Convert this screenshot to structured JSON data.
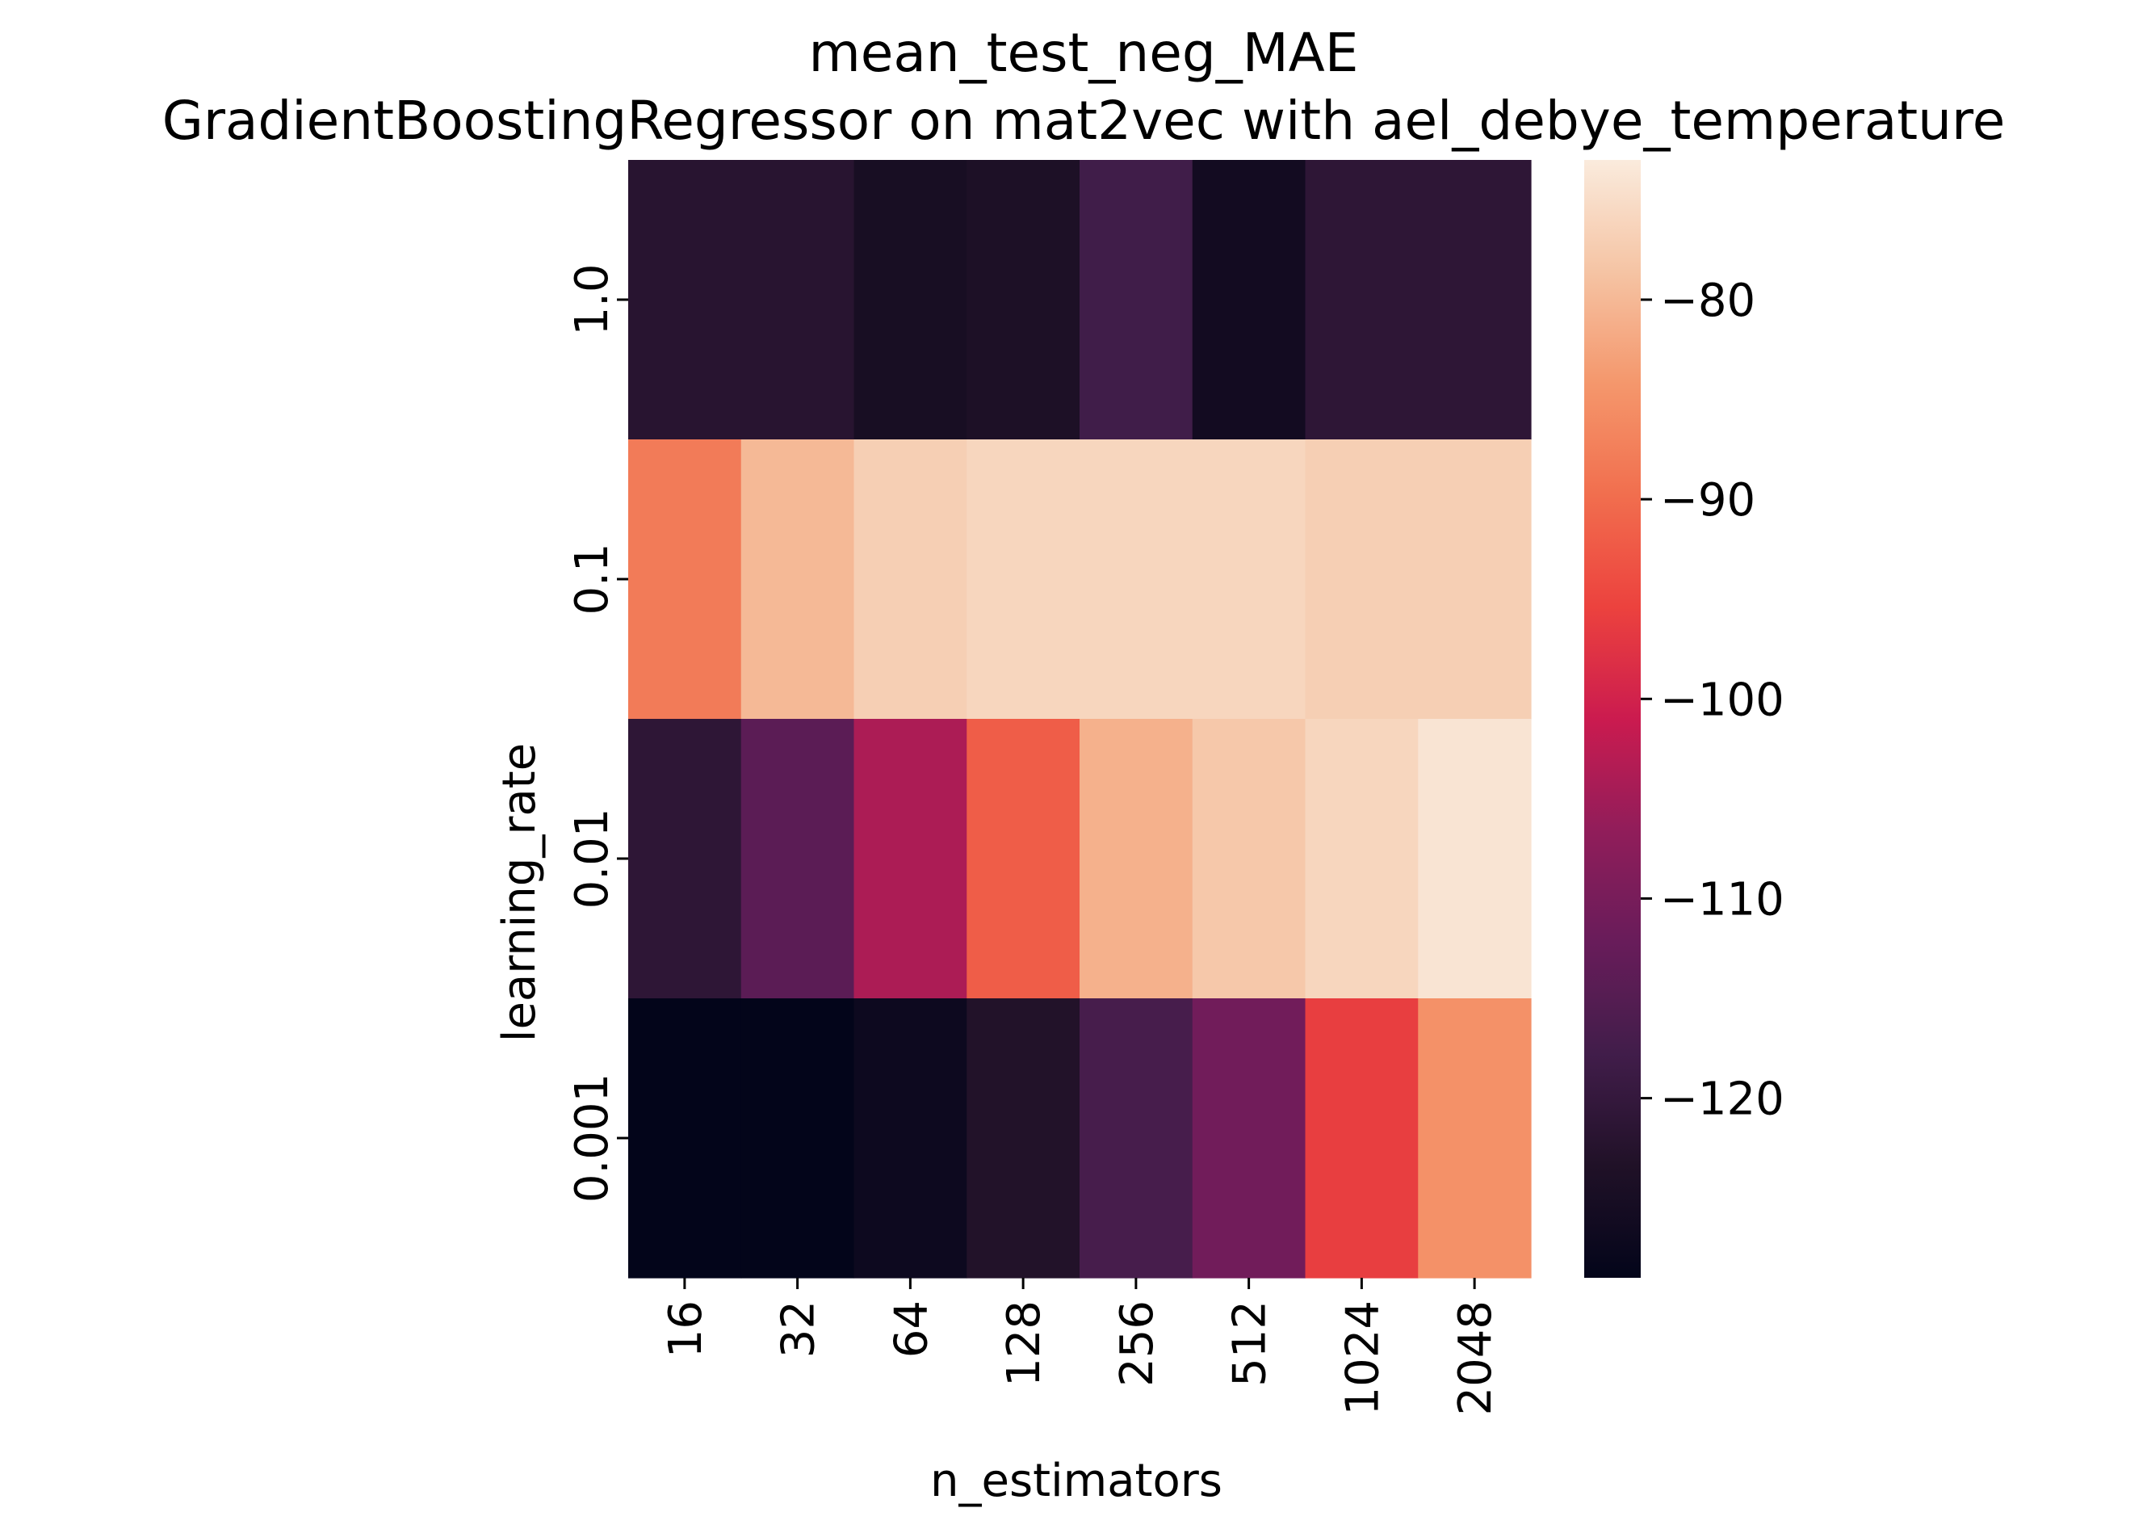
{
  "chart_data": {
    "type": "heatmap",
    "title": [
      "mean_test_neg_MAE",
      "GradientBoostingRegressor on mat2vec with ael_debye_temperature"
    ],
    "xlabel": "n_estimators",
    "ylabel": "learning_rate",
    "x_categories": [
      "16",
      "32",
      "64",
      "128",
      "256",
      "512",
      "1024",
      "2048"
    ],
    "y_categories": [
      "1.0",
      "0.1",
      "0.01",
      "0.001"
    ],
    "values": [
      [
        -122,
        -122,
        -125,
        -124,
        -118,
        -126,
        -121,
        -121
      ],
      [
        -88,
        -80,
        -77,
        -76,
        -76,
        -76,
        -77,
        -77
      ],
      [
        -121,
        -114,
        -104,
        -92,
        -81,
        -78,
        -76,
        -74
      ],
      [
        -129,
        -129,
        -127,
        -123,
        -117,
        -111,
        -96,
        -85
      ]
    ],
    "colorbar": {
      "min": -129,
      "max": -73,
      "ticks": [
        -80,
        -90,
        -100,
        -110,
        -120
      ],
      "tick_labels": [
        "−80",
        "−90",
        "−100",
        "−110",
        "−120"
      ],
      "colormap": "rocket"
    }
  }
}
